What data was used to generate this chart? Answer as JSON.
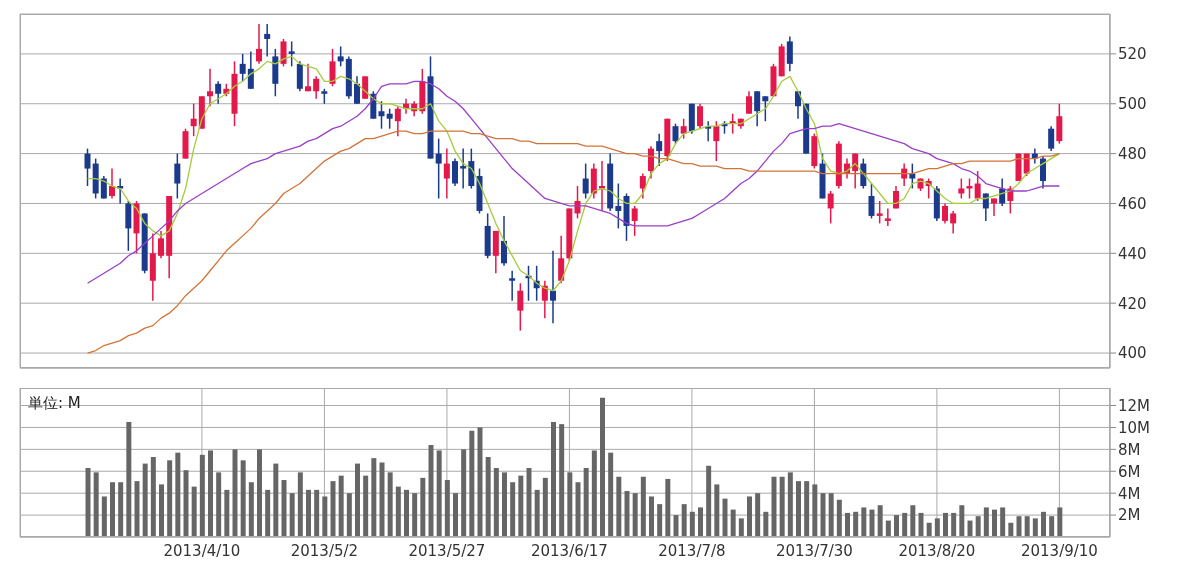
{
  "chart_data": [
    {
      "type": "candlestick",
      "categories": [
        null,
        null,
        null,
        null,
        null,
        null,
        null,
        null,
        null,
        null,
        null,
        null,
        null,
        null,
        "2013/4/10",
        null,
        null,
        null,
        null,
        null,
        null,
        null,
        null,
        null,
        null,
        null,
        null,
        null,
        null,
        "2013/5/2",
        null,
        null,
        null,
        null,
        null,
        null,
        null,
        null,
        null,
        null,
        null,
        null,
        null,
        null,
        "2013/5/27",
        null,
        null,
        null,
        null,
        null,
        null,
        null,
        null,
        null,
        null,
        null,
        null,
        null,
        null,
        "2013/6/17",
        null,
        null,
        null,
        null,
        null,
        null,
        null,
        null,
        null,
        null,
        null,
        null,
        null,
        null,
        "2013/7/8",
        null,
        null,
        null,
        null,
        null,
        null,
        null,
        null,
        null,
        null,
        null,
        null,
        null,
        null,
        "2013/7/30",
        null,
        null,
        null,
        null,
        null,
        null,
        null,
        null,
        null,
        null,
        null,
        null,
        null,
        null,
        "2013/8/20",
        null,
        null,
        null,
        null,
        null,
        null,
        null,
        null,
        null,
        null,
        null,
        null,
        null,
        null,
        "2013/9/10"
      ],
      "ohlc": [
        [
          480,
          482,
          467,
          474
        ],
        [
          476,
          478,
          462,
          464
        ],
        [
          470,
          471,
          462,
          462
        ],
        [
          463,
          474,
          462,
          467
        ],
        [
          467,
          470,
          460,
          466
        ],
        [
          460,
          461,
          441,
          450
        ],
        [
          448,
          461,
          440,
          460
        ],
        [
          456,
          456,
          432,
          433
        ],
        [
          429,
          448,
          421,
          440
        ],
        [
          439,
          449,
          438,
          446
        ],
        [
          439,
          463,
          430,
          463
        ],
        [
          476,
          480,
          462,
          468
        ],
        [
          478,
          490,
          478,
          489
        ],
        [
          491,
          500,
          487,
          494
        ],
        [
          490,
          503,
          490,
          503
        ],
        [
          503,
          514,
          499,
          505
        ],
        [
          508,
          509,
          500,
          504
        ],
        [
          504,
          508,
          503,
          506
        ],
        [
          496,
          517,
          491,
          512
        ],
        [
          516,
          520,
          509,
          512
        ],
        [
          514,
          521,
          506,
          506
        ],
        [
          517,
          532,
          516,
          522
        ],
        [
          528,
          532,
          519,
          526
        ],
        [
          519,
          522,
          503,
          508
        ],
        [
          516,
          526,
          515,
          525
        ],
        [
          521,
          525,
          515,
          520
        ],
        [
          516,
          517,
          505,
          506
        ],
        [
          505,
          516,
          505,
          507
        ],
        [
          505,
          511,
          502,
          510
        ],
        [
          505,
          506,
          500,
          504
        ],
        [
          508,
          522,
          507,
          517
        ],
        [
          519,
          523,
          515,
          517
        ],
        [
          518,
          519,
          502,
          503
        ],
        [
          508,
          511,
          500,
          500
        ],
        [
          502,
          511,
          502,
          511
        ],
        [
          504,
          505,
          494,
          494
        ],
        [
          497,
          501,
          490,
          495
        ],
        [
          496,
          498,
          490,
          494
        ],
        [
          493,
          499,
          487,
          498
        ],
        [
          498,
          502,
          496,
          500
        ],
        [
          497,
          501,
          495,
          500
        ],
        [
          497,
          514,
          496,
          509
        ],
        [
          511,
          519,
          478,
          478
        ],
        [
          480,
          486,
          462,
          476
        ],
        [
          470,
          482,
          462,
          476
        ],
        [
          477,
          478,
          467,
          468
        ],
        [
          475,
          482,
          466,
          474
        ],
        [
          477,
          482,
          466,
          467
        ],
        [
          471,
          474,
          456,
          457
        ],
        [
          451,
          456,
          438,
          439
        ],
        [
          439,
          449,
          432,
          449
        ],
        [
          445,
          455,
          435,
          436
        ],
        [
          430,
          433,
          421,
          429
        ],
        [
          417,
          428,
          409,
          425
        ],
        [
          431,
          435,
          421,
          430
        ],
        [
          429,
          435,
          421,
          426
        ],
        [
          421,
          429,
          414,
          427
        ],
        [
          425,
          441,
          412,
          421
        ],
        [
          429,
          447,
          428,
          438
        ],
        [
          438,
          458,
          437,
          458
        ],
        [
          456,
          467,
          454,
          461
        ],
        [
          470,
          476,
          462,
          464
        ],
        [
          464,
          476,
          462,
          474
        ],
        [
          466,
          477,
          457,
          467
        ],
        [
          476,
          480,
          457,
          458
        ],
        [
          459,
          468,
          450,
          457
        ],
        [
          463,
          464,
          445,
          451
        ],
        [
          453,
          459,
          447,
          458
        ],
        [
          466,
          472,
          462,
          471
        ],
        [
          473,
          483,
          470,
          482
        ],
        [
          485,
          488,
          475,
          481
        ],
        [
          479,
          494,
          477,
          494
        ],
        [
          491,
          492,
          484,
          485
        ],
        [
          488,
          494,
          486,
          491
        ],
        [
          500,
          500,
          488,
          489
        ],
        [
          491,
          500,
          490,
          499
        ],
        [
          491,
          493,
          485,
          490
        ],
        [
          485,
          493,
          477,
          491
        ],
        [
          492,
          493,
          488,
          491
        ],
        [
          492,
          496,
          488,
          493
        ],
        [
          491,
          494,
          490,
          494
        ],
        [
          496,
          505,
          496,
          503
        ],
        [
          505,
          505,
          491,
          497
        ],
        [
          503,
          503,
          493,
          501
        ],
        [
          503,
          516,
          503,
          515
        ],
        [
          511,
          524,
          511,
          523
        ],
        [
          525,
          527,
          513,
          516
        ],
        [
          505,
          505,
          494,
          499
        ],
        [
          500,
          500,
          480,
          480
        ],
        [
          475,
          488,
          474,
          487
        ],
        [
          476,
          480,
          462,
          462
        ],
        [
          458,
          465,
          452,
          464
        ],
        [
          467,
          485,
          466,
          484
        ],
        [
          472,
          478,
          470,
          476
        ],
        [
          473,
          480,
          466,
          480
        ],
        [
          476,
          478,
          466,
          467
        ],
        [
          463,
          468,
          454,
          455
        ],
        [
          455,
          461,
          452,
          456
        ],
        [
          453,
          458,
          451,
          454
        ],
        [
          458,
          467,
          458,
          465
        ],
        [
          470,
          476,
          467,
          474
        ],
        [
          472,
          476,
          466,
          470
        ],
        [
          466,
          470,
          465,
          470
        ],
        [
          467,
          470,
          462,
          469
        ],
        [
          466,
          467,
          453,
          454
        ],
        [
          453,
          460,
          452,
          459
        ],
        [
          452,
          457,
          448,
          456
        ],
        [
          464,
          470,
          462,
          466
        ],
        [
          466,
          470,
          462,
          467
        ],
        [
          462,
          473,
          461,
          468
        ],
        [
          464,
          464,
          453,
          458
        ],
        [
          460,
          462,
          455,
          462
        ],
        [
          466,
          470,
          459,
          460
        ],
        [
          461,
          467,
          456,
          466
        ],
        [
          469,
          480,
          469,
          480
        ],
        [
          472,
          480,
          471,
          480
        ],
        [
          480,
          482,
          476,
          478
        ],
        [
          478,
          479,
          466,
          469
        ],
        [
          490,
          491,
          481,
          482
        ],
        [
          485,
          500,
          484,
          495
        ]
      ],
      "colors": [
        "#1b3a8c",
        "#1b3a8c",
        "#1b3a8c",
        "#e3194b",
        "#1b3a8c",
        "#1b3a8c",
        "#e3194b",
        "#1b3a8c",
        "#e3194b",
        "#e3194b",
        "#e3194b",
        "#1b3a8c",
        "#e3194b",
        "#e3194b",
        "#e3194b",
        "#e3194b",
        "#1b3a8c",
        "#e3194b",
        "#e3194b",
        "#1b3a8c",
        "#1b3a8c",
        "#e3194b",
        "#1b3a8c",
        "#1b3a8c",
        "#e3194b",
        "#1b3a8c",
        "#1b3a8c",
        "#e3194b",
        "#e3194b",
        "#1b3a8c",
        "#e3194b",
        "#1b3a8c",
        "#1b3a8c",
        "#1b3a8c",
        "#e3194b",
        "#1b3a8c",
        "#1b3a8c",
        "#1b3a8c",
        "#e3194b",
        "#e3194b",
        "#e3194b",
        "#e3194b",
        "#1b3a8c",
        "#1b3a8c",
        "#e3194b",
        "#1b3a8c",
        "#1b3a8c",
        "#1b3a8c",
        "#1b3a8c",
        "#1b3a8c",
        "#e3194b",
        "#1b3a8c",
        "#1b3a8c",
        "#e3194b",
        "#1b3a8c",
        "#1b3a8c",
        "#e3194b",
        "#1b3a8c",
        "#e3194b",
        "#e3194b",
        "#e3194b",
        "#1b3a8c",
        "#e3194b",
        "#e3194b",
        "#1b3a8c",
        "#1b3a8c",
        "#1b3a8c",
        "#e3194b",
        "#e3194b",
        "#e3194b",
        "#1b3a8c",
        "#e3194b",
        "#1b3a8c",
        "#e3194b",
        "#1b3a8c",
        "#e3194b",
        "#1b3a8c",
        "#e3194b",
        "#1b3a8c",
        "#e3194b",
        "#e3194b",
        "#e3194b",
        "#1b3a8c",
        "#1b3a8c",
        "#e3194b",
        "#e3194b",
        "#1b3a8c",
        "#1b3a8c",
        "#1b3a8c",
        "#e3194b",
        "#1b3a8c",
        "#e3194b",
        "#e3194b",
        "#e3194b",
        "#e3194b",
        "#1b3a8c",
        "#1b3a8c",
        "#e3194b",
        "#e3194b",
        "#e3194b",
        "#e3194b",
        "#1b3a8c",
        "#e3194b",
        "#e3194b",
        "#1b3a8c",
        "#e3194b",
        "#e3194b",
        "#e3194b",
        "#e3194b",
        "#e3194b",
        "#1b3a8c",
        "#e3194b",
        "#1b3a8c",
        "#e3194b",
        "#e3194b",
        "#e3194b",
        "#1b3a8c",
        "#1b3a8c",
        "#1b3a8c",
        "#e3194b"
      ],
      "series": [
        {
          "type": "line",
          "color": "#a4cc3c",
          "values": [
            470,
            470,
            469,
            467,
            466,
            461,
            458,
            452,
            449,
            447,
            449,
            456,
            466,
            482,
            494,
            500,
            502,
            504,
            507,
            509,
            512,
            514,
            517,
            516,
            518,
            519,
            516,
            515,
            514,
            509,
            509,
            511,
            510,
            508,
            505,
            502,
            500,
            500,
            499,
            498,
            498,
            498,
            500,
            493,
            489,
            481,
            476,
            474,
            468,
            460,
            452,
            445,
            439,
            433,
            431,
            428,
            426,
            425,
            429,
            437,
            449,
            460,
            465,
            466,
            465,
            462,
            460,
            460,
            464,
            472,
            476,
            478,
            484,
            488,
            489,
            490,
            491,
            491,
            492,
            492,
            492,
            494,
            496,
            498,
            503,
            509,
            511,
            505,
            498,
            492,
            478,
            473,
            472,
            473,
            476,
            472,
            468,
            464,
            460,
            460,
            462,
            468,
            469,
            468,
            465,
            462,
            460,
            460,
            460,
            462,
            462,
            463,
            464,
            465,
            468,
            472,
            474,
            476,
            478,
            480
          ]
        },
        {
          "type": "line",
          "color": "#9a3fc8",
          "values": [
            428,
            430,
            432,
            434,
            436,
            439,
            441,
            444,
            447,
            450,
            453,
            457,
            460,
            462,
            464,
            466,
            468,
            470,
            472,
            474,
            476,
            477,
            478,
            480,
            481,
            482,
            483,
            485,
            486,
            488,
            490,
            491,
            493,
            495,
            498,
            502,
            507,
            508,
            508,
            508,
            509,
            509,
            508,
            506,
            503,
            501,
            498,
            494,
            490,
            486,
            482,
            478,
            474,
            471,
            468,
            465,
            462,
            461,
            460,
            459,
            459,
            459,
            458,
            457,
            456,
            454,
            452,
            451,
            451,
            451,
            451,
            451,
            452,
            453,
            454,
            456,
            458,
            460,
            462,
            465,
            468,
            470,
            473,
            477,
            481,
            484,
            488,
            489,
            490,
            490,
            491,
            491,
            492,
            491,
            490,
            489,
            488,
            487,
            486,
            485,
            484,
            482,
            481,
            480,
            478,
            477,
            476,
            474,
            473,
            471,
            468,
            467,
            466,
            465,
            465,
            465,
            466,
            467,
            467,
            467
          ]
        },
        {
          "type": "line",
          "color": "#d2743a",
          "values": [
            400,
            401,
            403,
            404,
            405,
            407,
            408,
            410,
            411,
            414,
            416,
            419,
            423,
            426,
            429,
            433,
            437,
            441,
            444,
            447,
            450,
            454,
            457,
            460,
            464,
            466,
            468,
            471,
            474,
            477,
            479,
            481,
            482,
            484,
            486,
            486,
            487,
            488,
            489,
            489,
            488,
            488,
            489,
            489,
            489,
            489,
            489,
            488,
            488,
            487,
            486,
            486,
            486,
            485,
            485,
            484,
            484,
            484,
            484,
            484,
            484,
            483,
            483,
            483,
            482,
            481,
            480,
            480,
            479,
            479,
            478,
            478,
            477,
            476,
            476,
            475,
            475,
            475,
            474,
            474,
            474,
            473,
            473,
            473,
            473,
            473,
            473,
            473,
            473,
            473,
            472,
            472,
            472,
            472,
            472,
            472,
            472,
            472,
            472,
            472,
            472,
            472,
            473,
            474,
            474,
            475,
            476,
            476,
            477,
            477,
            477,
            477,
            477,
            477,
            478,
            478,
            478,
            479,
            479,
            480
          ]
        }
      ],
      "ylim": [
        394,
        536
      ],
      "yticks": [
        400,
        420,
        440,
        460,
        480,
        500,
        520
      ],
      "grid": true,
      "tick_labels": "y"
    },
    {
      "type": "bar",
      "categories": [
        null,
        null,
        null,
        null,
        null,
        null,
        null,
        null,
        null,
        null,
        null,
        null,
        null,
        null,
        "2013/4/10",
        null,
        null,
        null,
        null,
        null,
        null,
        null,
        null,
        null,
        null,
        null,
        null,
        null,
        null,
        "2013/5/2",
        null,
        null,
        null,
        null,
        null,
        null,
        null,
        null,
        null,
        null,
        null,
        null,
        null,
        null,
        "2013/5/27",
        null,
        null,
        null,
        null,
        null,
        null,
        null,
        null,
        null,
        null,
        null,
        null,
        null,
        null,
        "2013/6/17",
        null,
        null,
        null,
        null,
        null,
        null,
        null,
        null,
        null,
        null,
        null,
        null,
        null,
        null,
        "2013/7/8",
        null,
        null,
        null,
        null,
        null,
        null,
        null,
        null,
        null,
        null,
        null,
        null,
        null,
        null,
        "2013/7/30",
        null,
        null,
        null,
        null,
        null,
        null,
        null,
        null,
        null,
        null,
        null,
        null,
        null,
        null,
        "2013/8/20",
        null,
        null,
        null,
        null,
        null,
        null,
        null,
        null,
        null,
        null,
        null,
        null,
        null,
        null,
        "2013/9/10"
      ],
      "values": [
        6.3,
        5.9,
        3.7,
        5.0,
        5.0,
        10.5,
        5.1,
        6.7,
        7.3,
        4.8,
        7.0,
        7.7,
        6.1,
        4.6,
        7.5,
        7.9,
        5.9,
        4.3,
        8.0,
        7.0,
        5.0,
        8.0,
        4.3,
        6.7,
        5.2,
        4.0,
        5.9,
        4.3,
        4.3,
        3.7,
        5.1,
        5.6,
        4.0,
        6.7,
        5.6,
        7.2,
        6.8,
        5.9,
        4.6,
        4.3,
        4.0,
        5.4,
        8.4,
        7.9,
        5.2,
        4.0,
        8.0,
        9.7,
        10.0,
        7.3,
        6.3,
        5.9,
        5.0,
        5.6,
        6.3,
        4.3,
        5.4,
        10.5,
        10.3,
        5.9,
        5.0,
        6.3,
        7.9,
        12.7,
        7.7,
        5.5,
        4.2,
        4.0,
        5.5,
        3.7,
        3.0,
        5.3,
        2.0,
        3.0,
        2.3,
        2.7,
        6.5,
        4.8,
        3.5,
        2.5,
        1.7,
        3.7,
        4.0,
        2.3,
        5.5,
        5.5,
        5.9,
        5.1,
        5.1,
        4.8,
        4.0,
        4.0,
        3.4,
        2.2,
        2.3,
        2.7,
        2.5,
        2.9,
        1.5,
        2.0,
        2.2,
        2.9,
        2.2,
        1.3,
        1.7,
        2.2,
        2.2,
        2.9,
        1.5,
        1.9,
        2.7,
        2.5,
        2.7,
        1.3,
        1.9,
        1.9,
        1.7,
        2.3,
        1.9,
        2.7
      ],
      "color": "#666666",
      "ylim": [
        0,
        13.6
      ],
      "yticks": [
        {
          "value": 2,
          "label": "2M"
        },
        {
          "value": 4,
          "label": "4M"
        },
        {
          "value": 6,
          "label": "6M"
        },
        {
          "value": 8,
          "label": "8M"
        },
        {
          "value": 10,
          "label": "10M"
        },
        {
          "value": 12,
          "label": "12M"
        }
      ],
      "grid": true,
      "annotations": [
        "単位: M"
      ]
    }
  ]
}
